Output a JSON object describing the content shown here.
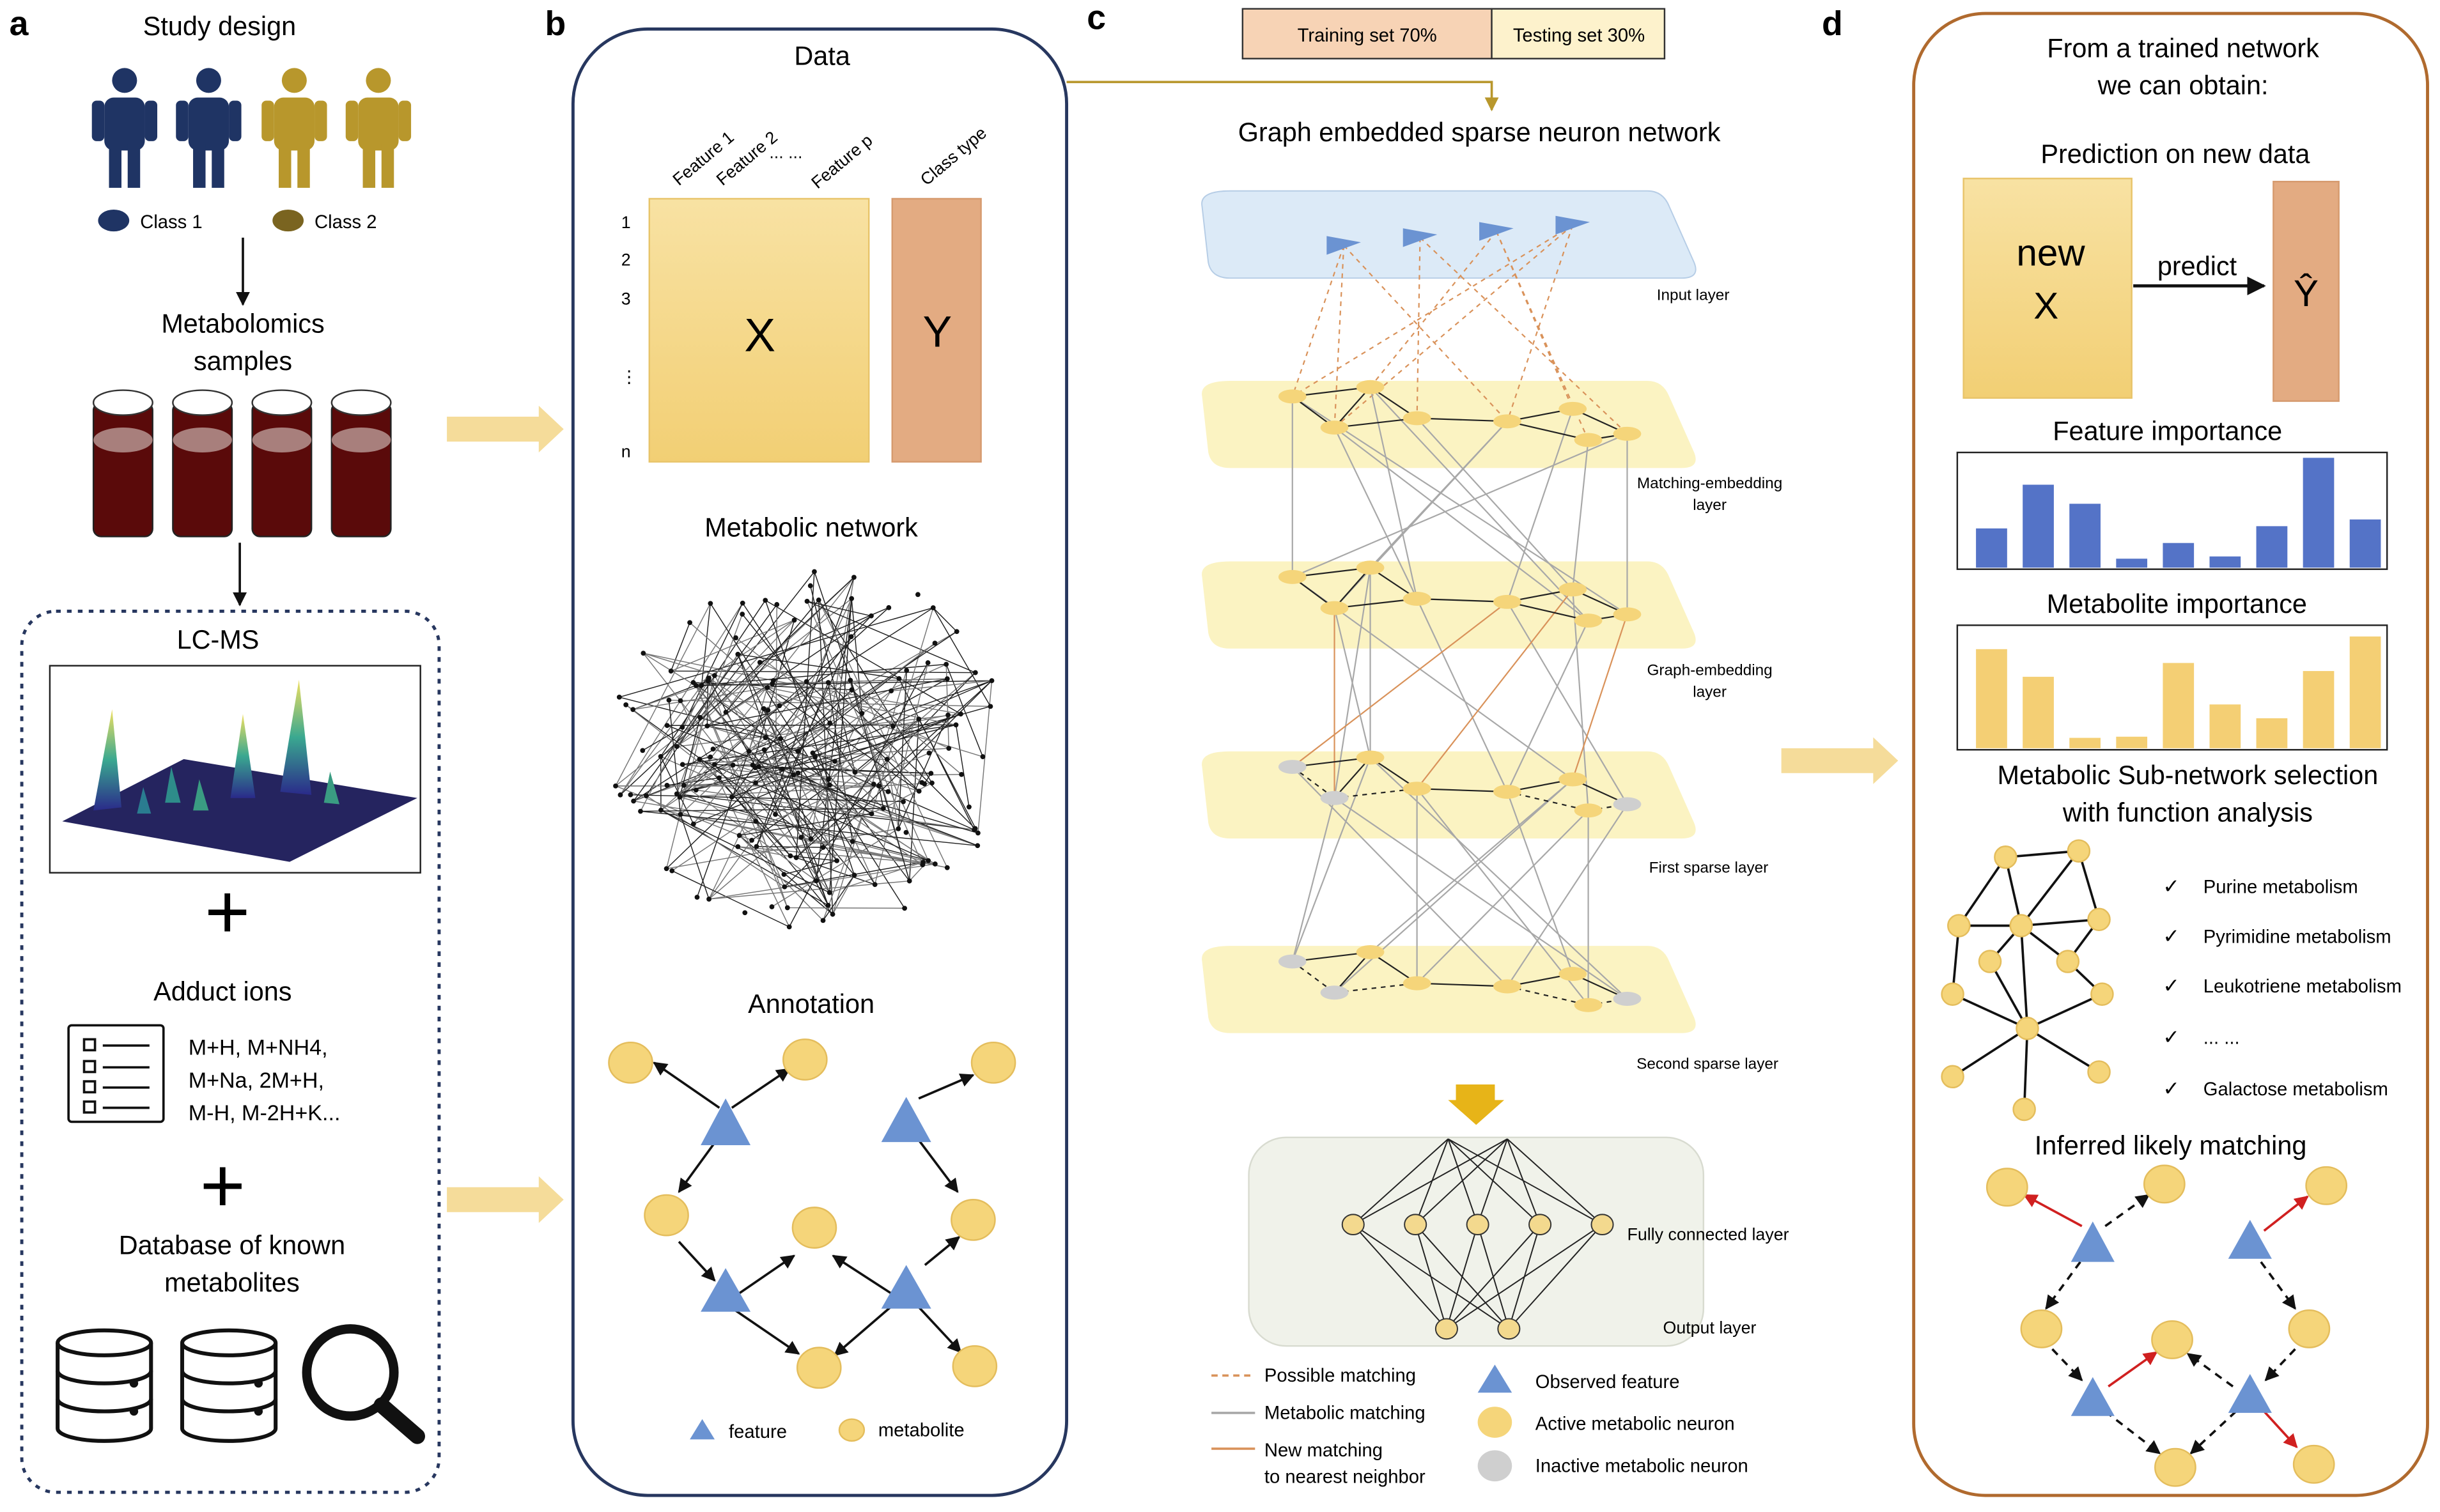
{
  "panels": {
    "a": {
      "letter": "a",
      "study_design": "Study design",
      "class1": "Class 1",
      "class2": "Class 2",
      "samples_line1": "Metabolomics",
      "samples_line2": "samples",
      "lcms": "LC-MS",
      "adduct_title": "Adduct ions",
      "adduct_line1": "M+H,  M+NH4,",
      "adduct_line2": "M+Na, 2M+H,",
      "adduct_line3": "M-H, M-2H+K...",
      "db_line1": "Database of known",
      "db_line2": "metabolites"
    },
    "b": {
      "letter": "b",
      "data_title": "Data",
      "features": [
        "Feature 1",
        "Feature 2",
        "... ...",
        "Feature p"
      ],
      "class_type": "Class type",
      "rows": [
        "1",
        "2",
        "3",
        "⋮",
        "n"
      ],
      "x": "X",
      "y": "Y",
      "network_title": "Metabolic network",
      "annotation_title": "Annotation",
      "legend_feature": "feature",
      "legend_metabolite": "metabolite"
    },
    "c": {
      "letter": "c",
      "training": "Training set 70%",
      "testing": "Testing set 30%",
      "title": "Graph embedded sparse neuron network",
      "input_layer": "Input layer",
      "matching_line1": "Matching-embedding",
      "matching_line2": "layer",
      "graph_line1": "Graph-embedding",
      "graph_line2": "layer",
      "first_sparse": "First sparse layer",
      "second_sparse": "Second sparse layer",
      "fully_connected": "Fully connected layer",
      "output_layer": "Output layer",
      "legend": {
        "possible": "Possible matching",
        "metabolic": "Metabolic matching",
        "new_line1": "New matching",
        "new_line2": "to nearest neighbor",
        "observed": "Observed feature",
        "active": "Active metabolic neuron",
        "inactive": "Inactive metabolic neuron"
      }
    },
    "d": {
      "letter": "d",
      "head_line1": "From a trained network",
      "head_line2": "we can obtain:",
      "prediction_title": "Prediction on new data",
      "new_line1": "new",
      "new_line2": "X",
      "predict": "predict",
      "yhat": "Ŷ",
      "feature_importance": "Feature importance",
      "metabolite_importance": "Metabolite importance",
      "subnet_line1": "Metabolic Sub-network selection",
      "subnet_line2": "with function analysis",
      "pathways": [
        "Purine metabolism",
        "Pyrimidine metabolism",
        "Leukotriene metabolism",
        "... ...",
        "Galactose metabolism"
      ],
      "inferred": "Inferred likely matching",
      "feature_bars": [
        0.35,
        0.74,
        0.57,
        0.08,
        0.22,
        0.1,
        0.37,
        0.98,
        0.43
      ],
      "metabolite_bars": [
        0.86,
        0.62,
        0.09,
        0.1,
        0.74,
        0.38,
        0.26,
        0.67,
        0.97
      ]
    }
  },
  "colors": {
    "navy": "#1f3464",
    "gold": "#b8972c",
    "feature_blue": "#6b93d2",
    "metabolite": "#f5d57a",
    "x_fill": "#f5d88a",
    "y_fill": "#e3ab82",
    "layer_fill": "#fbf3c2",
    "input_fill": "#dceaf7",
    "arrow_fill": "#f5dc9a",
    "orange_line": "#d9925a",
    "gray_line": "#a8a8a8",
    "bar_blue": "#5473c7",
    "bar_yellow": "#f4cf74",
    "panel_d_border": "#b06a2e",
    "panel_b_border": "#27375f"
  }
}
